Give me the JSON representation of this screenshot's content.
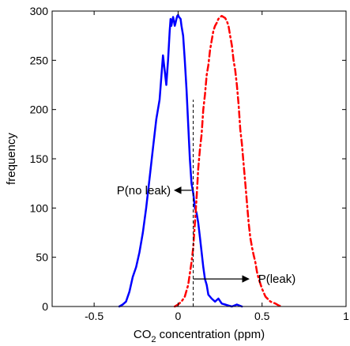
{
  "chart_data": {
    "type": "line",
    "xlabel": {
      "prefix": "CO",
      "subscript": "2",
      "suffix": " concentration (ppm)"
    },
    "ylabel": "frequency",
    "xlim": [
      -0.75,
      1.0
    ],
    "ylim": [
      0,
      300
    ],
    "xticks": [
      -0.5,
      0,
      0.5,
      1
    ],
    "xtick_labels": [
      "-0.5",
      "0",
      "0.5",
      "1"
    ],
    "yticks": [
      0,
      50,
      100,
      150,
      200,
      250,
      300
    ],
    "ytick_labels": [
      "0",
      "50",
      "100",
      "150",
      "200",
      "250",
      "300"
    ],
    "threshold_x": 0.09,
    "series": [
      {
        "color": "#0000ff",
        "style": "solid",
        "x": [
          -0.35,
          -0.33,
          -0.31,
          -0.29,
          -0.27,
          -0.25,
          -0.23,
          -0.21,
          -0.19,
          -0.17,
          -0.15,
          -0.13,
          -0.11,
          -0.09,
          -0.08,
          -0.07,
          -0.06,
          -0.05,
          -0.045,
          -0.04,
          -0.035,
          -0.03,
          -0.025,
          -0.02,
          -0.015,
          -0.01,
          -0.005,
          0.0,
          0.005,
          0.01,
          0.015,
          0.02,
          0.03,
          0.04,
          0.05,
          0.06,
          0.07,
          0.08,
          0.09,
          0.1,
          0.11,
          0.12,
          0.13,
          0.14,
          0.15,
          0.16,
          0.17,
          0.18,
          0.2,
          0.22,
          0.24,
          0.26,
          0.28,
          0.3,
          0.32,
          0.35,
          0.38
        ],
        "y": [
          0,
          2,
          5,
          15,
          30,
          40,
          55,
          75,
          100,
          130,
          160,
          190,
          210,
          255,
          240,
          225,
          250,
          280,
          292,
          285,
          290,
          294,
          290,
          285,
          288,
          292,
          295,
          296,
          294,
          293,
          292,
          285,
          275,
          250,
          220,
          185,
          150,
          125,
          115,
          100,
          95,
          85,
          70,
          55,
          40,
          28,
          22,
          12,
          8,
          5,
          8,
          3,
          2,
          1,
          0,
          2,
          0
        ]
      },
      {
        "color": "#ff0000",
        "style": "dashdot",
        "x": [
          -0.02,
          0.0,
          0.02,
          0.04,
          0.06,
          0.08,
          0.09,
          0.1,
          0.11,
          0.12,
          0.13,
          0.14,
          0.15,
          0.16,
          0.17,
          0.18,
          0.19,
          0.2,
          0.21,
          0.22,
          0.23,
          0.24,
          0.25,
          0.26,
          0.27,
          0.28,
          0.29,
          0.3,
          0.31,
          0.32,
          0.33,
          0.34,
          0.35,
          0.36,
          0.37,
          0.38,
          0.39,
          0.4,
          0.41,
          0.42,
          0.43,
          0.44,
          0.45,
          0.46,
          0.47,
          0.48,
          0.5,
          0.52,
          0.55,
          0.58,
          0.6,
          0.62
        ],
        "y": [
          0,
          2,
          5,
          10,
          22,
          45,
          60,
          85,
          110,
          140,
          160,
          175,
          200,
          215,
          235,
          245,
          260,
          270,
          280,
          285,
          288,
          292,
          294,
          295,
          294,
          293,
          290,
          285,
          275,
          265,
          250,
          240,
          225,
          205,
          180,
          165,
          145,
          125,
          105,
          85,
          70,
          60,
          52,
          45,
          35,
          28,
          18,
          10,
          5,
          3,
          1,
          0
        ]
      }
    ],
    "annotations": [
      {
        "text": "P(no leak)",
        "arrow_from": 0.08,
        "arrow_to": -0.02,
        "y": 118
      },
      {
        "text": "P(leak)",
        "arrow_from": 0.09,
        "arrow_to": 0.42,
        "y": 28
      }
    ]
  }
}
